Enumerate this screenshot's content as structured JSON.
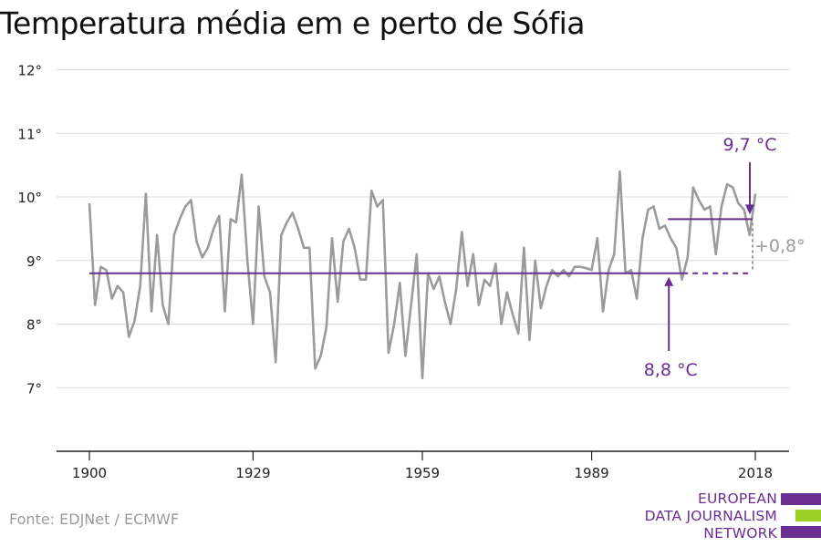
{
  "title": "Temperatura média em e perto de Sófia",
  "source": "Fonte: EDJNet / ECMWF",
  "logo": {
    "lines": [
      "EUROPEAN",
      "DATA JOURNALISM",
      "NETWORK"
    ],
    "colors": [
      "#6a2d91",
      "#9bd126",
      "#6a2d91"
    ]
  },
  "colors": {
    "series": "#9b9b9b",
    "accent": "#6a2d91",
    "grid": "#dcdcdc",
    "axis": "#222222",
    "diff": "#9b9b9b"
  },
  "chart_data": {
    "type": "line",
    "title": "Temperatura média em e perto de Sófia",
    "xlabel": "",
    "ylabel": "",
    "xlim": [
      1900,
      2018
    ],
    "ylim": [
      6,
      12
    ],
    "y_ticks": [
      7,
      8,
      9,
      10,
      11,
      12
    ],
    "y_tick_labels": [
      "7°",
      "8°",
      "9°",
      "10°",
      "11°",
      "12°"
    ],
    "x_ticks": [
      1900,
      1929,
      1959,
      1989,
      2018
    ],
    "x_tick_labels": [
      "1900",
      "1929",
      "1959",
      "1989",
      "2018"
    ],
    "grid": true,
    "legend": "none",
    "series": [
      {
        "x": [
          1900,
          1901,
          1902,
          1903,
          1904,
          1905,
          1906,
          1907,
          1908,
          1909,
          1910,
          1911,
          1912,
          1913,
          1914,
          1915,
          1916,
          1917,
          1918,
          1919,
          1920,
          1921,
          1922,
          1923,
          1924,
          1925,
          1926,
          1927,
          1928,
          1929,
          1930,
          1931,
          1932,
          1933,
          1934,
          1935,
          1936,
          1937,
          1938,
          1939,
          1940,
          1941,
          1942,
          1943,
          1944,
          1945,
          1946,
          1947,
          1948,
          1949,
          1950,
          1951,
          1952,
          1953,
          1954,
          1955,
          1956,
          1957,
          1958,
          1959,
          1960,
          1961,
          1962,
          1963,
          1964,
          1965,
          1966,
          1967,
          1968,
          1969,
          1970,
          1971,
          1972,
          1973,
          1974,
          1975,
          1976,
          1977,
          1978,
          1979,
          1980,
          1981,
          1982,
          1983,
          1984,
          1985,
          1986,
          1987,
          1988,
          1989,
          1990,
          1991,
          1992,
          1993,
          1994,
          1995,
          1996,
          1997,
          1998,
          1999,
          2000,
          2001,
          2002,
          2003,
          2004,
          2005,
          2006,
          2007,
          2008,
          2009,
          2010,
          2011,
          2012,
          2013,
          2014,
          2015,
          2016,
          2017,
          2018
        ],
        "values": [
          9.9,
          8.3,
          8.9,
          8.85,
          8.4,
          8.6,
          8.5,
          7.8,
          8.05,
          8.6,
          10.05,
          8.2,
          9.4,
          8.3,
          8.0,
          9.4,
          9.65,
          9.85,
          9.95,
          9.3,
          9.05,
          9.2,
          9.5,
          9.7,
          8.2,
          9.65,
          9.6,
          10.35,
          9.0,
          8.0,
          9.85,
          8.75,
          8.5,
          7.4,
          9.4,
          9.6,
          9.75,
          9.5,
          9.2,
          9.2,
          7.3,
          7.5,
          7.95,
          9.35,
          8.35,
          9.3,
          9.5,
          9.2,
          8.7,
          8.7,
          10.1,
          9.85,
          9.95,
          7.55,
          8.0,
          8.65,
          7.5,
          8.3,
          9.1,
          7.15,
          8.8,
          8.55,
          8.75,
          8.35,
          8.0,
          8.55,
          9.45,
          8.6,
          9.1,
          8.3,
          8.7,
          8.6,
          8.95,
          8.0,
          8.5,
          8.15,
          7.85,
          9.2,
          7.75,
          9.0,
          8.25,
          8.6,
          8.85,
          8.75,
          8.85,
          8.75,
          8.9,
          8.9,
          8.88,
          8.85,
          9.35,
          8.2,
          8.85,
          9.1,
          10.4,
          8.8,
          8.85,
          8.4,
          9.35,
          9.8,
          9.85,
          9.5,
          9.55,
          9.35,
          9.2,
          8.7,
          9.05,
          10.15,
          9.95,
          9.8,
          9.85,
          9.1,
          9.85,
          10.2,
          10.15,
          9.9,
          9.8,
          9.4,
          10.05
        ]
      }
    ],
    "reference_lines": [
      {
        "label": "8,8 °C",
        "value": 8.8,
        "from": 1900,
        "to": 2018,
        "dashed_from": 2003
      },
      {
        "label": "9,7 °C",
        "value": 9.65,
        "from": 2003,
        "to": 2018
      }
    ],
    "difference_label": "+0,8°"
  }
}
